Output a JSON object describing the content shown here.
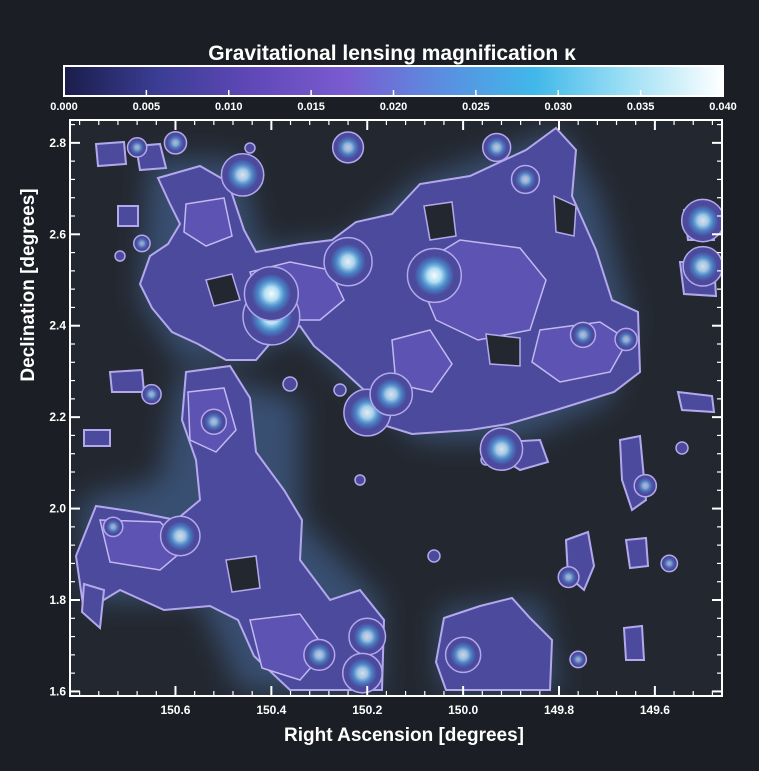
{
  "chart_data": {
    "type": "heatmap",
    "title": "Gravitational lensing magnification κ",
    "xlabel": "Right Ascension [degrees]",
    "ylabel": "Declination [degrees]",
    "colorbar": {
      "ticks": [
        "0.000",
        "0.005",
        "0.010",
        "0.015",
        "0.020",
        "0.025",
        "0.030",
        "0.035",
        "0.040"
      ],
      "range": [
        0.0,
        0.04
      ],
      "colors": [
        "#1a1d4a",
        "#3b3d94",
        "#6048b8",
        "#7a5cd0",
        "#5b8de0",
        "#40b8ea",
        "#9fe0f5",
        "#ffffff"
      ]
    },
    "x_ticks": [
      {
        "label": "150.6",
        "value": 150.6
      },
      {
        "label": "150.4",
        "value": 150.4
      },
      {
        "label": "150.2",
        "value": 150.2
      },
      {
        "label": "150.0",
        "value": 150.0
      },
      {
        "label": "149.8",
        "value": 149.8
      },
      {
        "label": "149.6",
        "value": 149.6
      }
    ],
    "y_ticks": [
      {
        "label": "1.6",
        "value": 1.6
      },
      {
        "label": "1.8",
        "value": 1.8
      },
      {
        "label": "2.0",
        "value": 2.0
      },
      {
        "label": "2.2",
        "value": 2.2
      },
      {
        "label": "2.4",
        "value": 2.4
      },
      {
        "label": "2.6",
        "value": 2.6
      },
      {
        "label": "2.8",
        "value": 2.8
      }
    ],
    "xlim": [
      150.82,
      149.46
    ],
    "ylim": [
      1.59,
      2.85
    ],
    "peaks": [
      {
        "ra": 150.4,
        "dec": 2.42,
        "kappa": 0.04
      },
      {
        "ra": 150.4,
        "dec": 2.47,
        "kappa": 0.038
      },
      {
        "ra": 150.06,
        "dec": 2.51,
        "kappa": 0.038
      },
      {
        "ra": 150.24,
        "dec": 2.54,
        "kappa": 0.034
      },
      {
        "ra": 150.46,
        "dec": 2.73,
        "kappa": 0.03
      },
      {
        "ra": 150.2,
        "dec": 2.21,
        "kappa": 0.033
      },
      {
        "ra": 150.15,
        "dec": 2.25,
        "kappa": 0.03
      },
      {
        "ra": 149.92,
        "dec": 2.13,
        "kappa": 0.03
      },
      {
        "ra": 150.59,
        "dec": 1.94,
        "kappa": 0.028
      },
      {
        "ra": 150.2,
        "dec": 1.72,
        "kappa": 0.026
      },
      {
        "ra": 150.21,
        "dec": 1.64,
        "kappa": 0.028
      },
      {
        "ra": 150.3,
        "dec": 1.68,
        "kappa": 0.022
      },
      {
        "ra": 150.0,
        "dec": 1.68,
        "kappa": 0.025
      },
      {
        "ra": 149.5,
        "dec": 2.63,
        "kappa": 0.03
      },
      {
        "ra": 149.5,
        "dec": 2.53,
        "kappa": 0.028
      },
      {
        "ra": 150.24,
        "dec": 2.79,
        "kappa": 0.022
      },
      {
        "ra": 149.93,
        "dec": 2.79,
        "kappa": 0.02
      },
      {
        "ra": 149.87,
        "dec": 2.72,
        "kappa": 0.02
      },
      {
        "ra": 150.52,
        "dec": 2.19,
        "kappa": 0.018
      },
      {
        "ra": 150.73,
        "dec": 1.96,
        "kappa": 0.014
      },
      {
        "ra": 150.65,
        "dec": 2.25,
        "kappa": 0.014
      },
      {
        "ra": 150.68,
        "dec": 2.79,
        "kappa": 0.014
      },
      {
        "ra": 150.6,
        "dec": 2.8,
        "kappa": 0.016
      },
      {
        "ra": 150.67,
        "dec": 2.58,
        "kappa": 0.012
      },
      {
        "ra": 149.75,
        "dec": 2.38,
        "kappa": 0.018
      },
      {
        "ra": 149.66,
        "dec": 2.37,
        "kappa": 0.016
      },
      {
        "ra": 149.62,
        "dec": 2.05,
        "kappa": 0.016
      },
      {
        "ra": 149.57,
        "dec": 1.88,
        "kappa": 0.012
      },
      {
        "ra": 149.78,
        "dec": 1.85,
        "kappa": 0.015
      },
      {
        "ra": 149.76,
        "dec": 1.67,
        "kappa": 0.012
      }
    ]
  }
}
